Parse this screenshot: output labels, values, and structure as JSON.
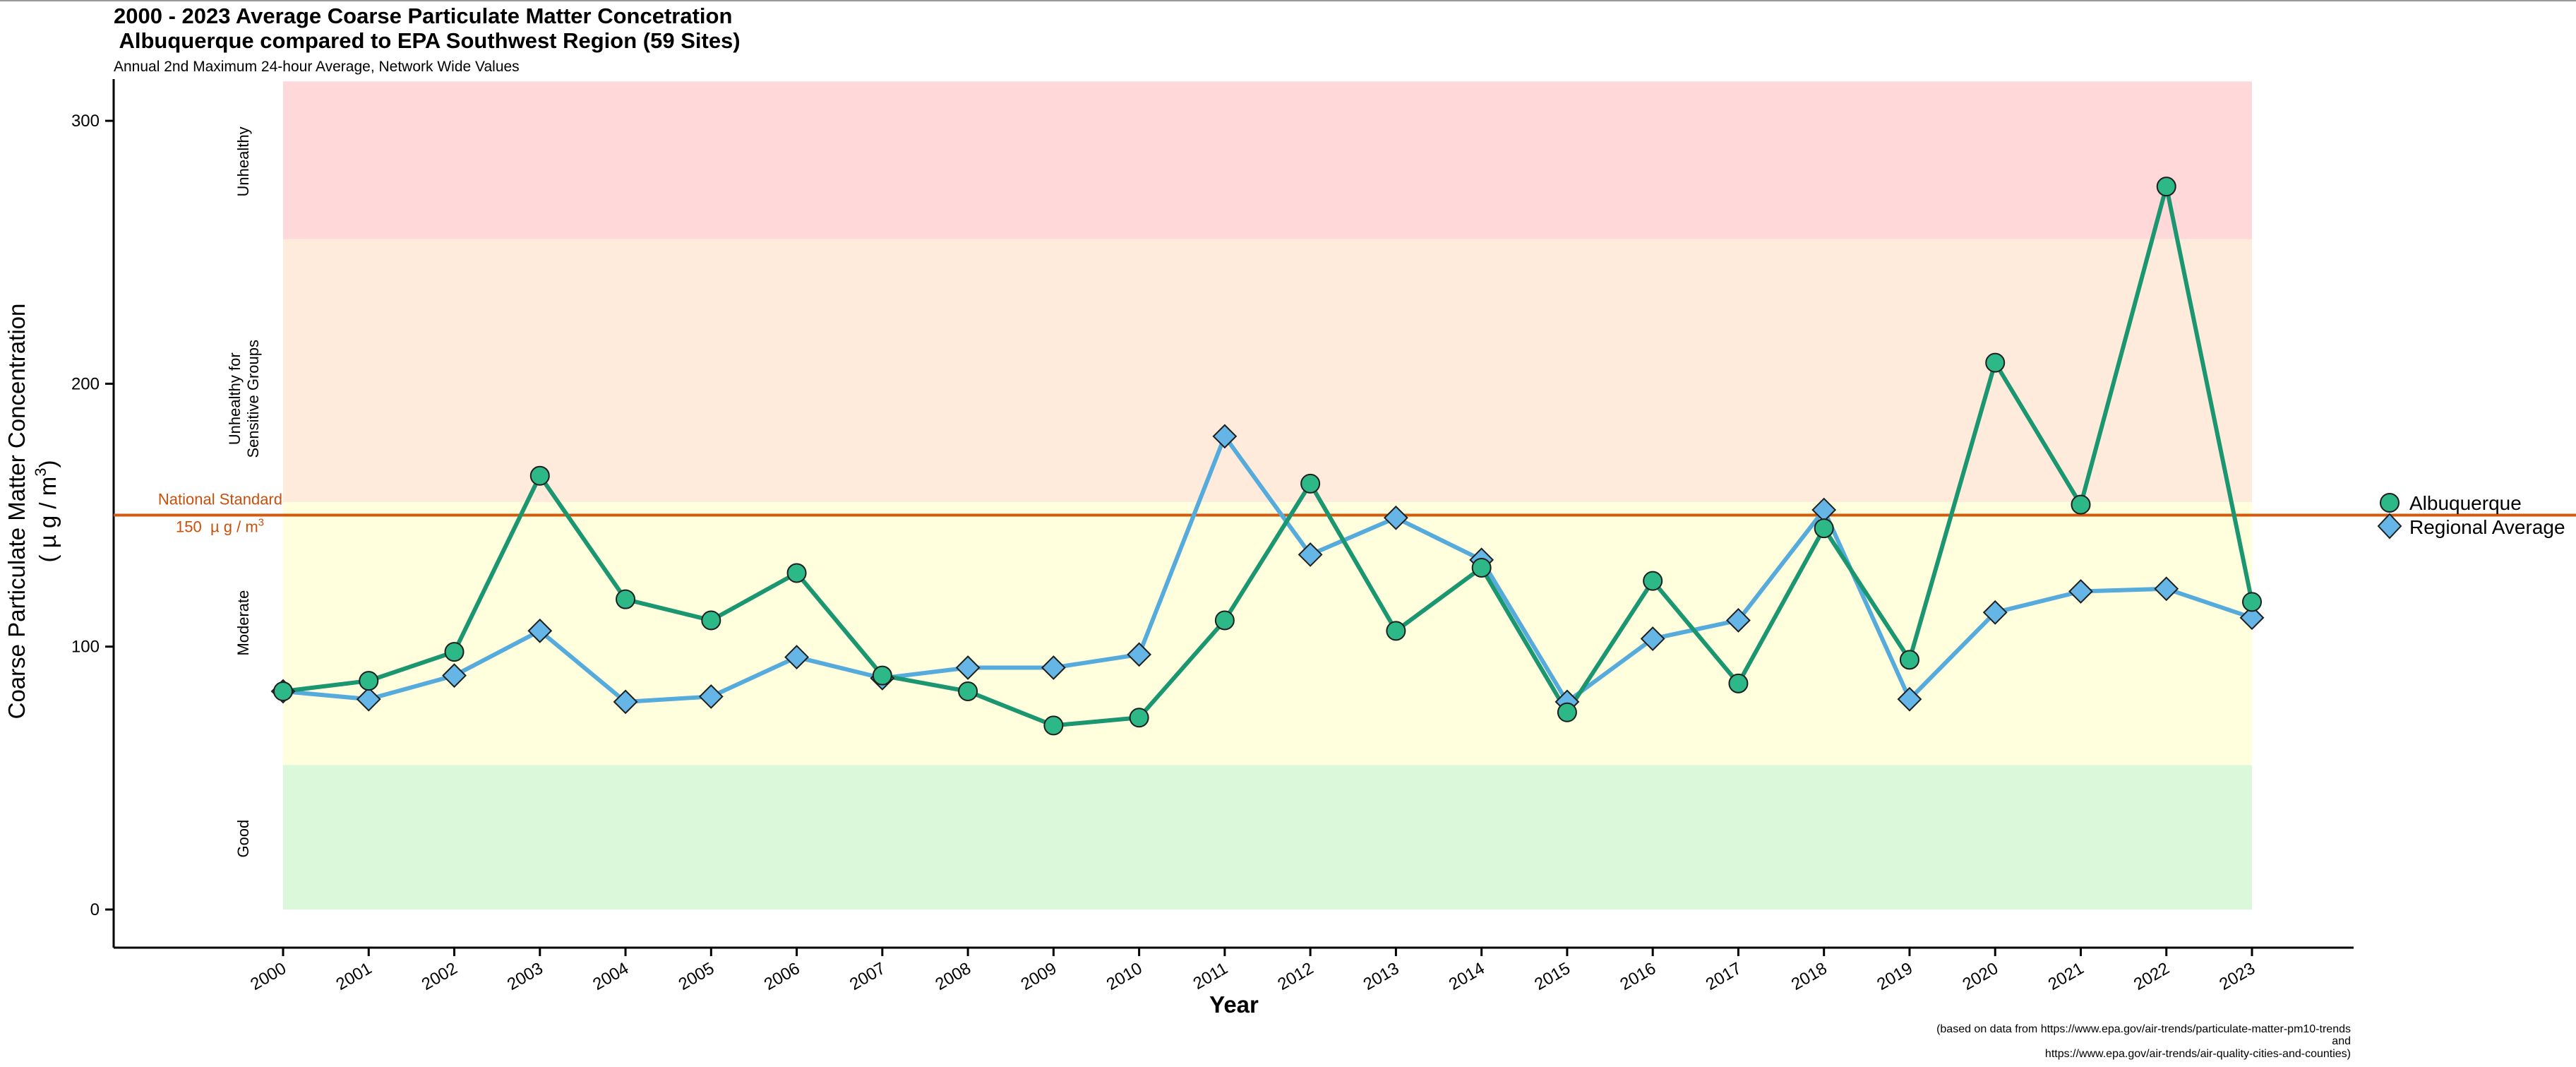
{
  "chart_data": {
    "type": "line",
    "title_line1": "2000 - 2023 Average Coarse Particulate Matter Concetration",
    "title_line2": " Albuquerque compared to EPA Southwest Region (59 Sites)",
    "subtitle": "Annual 2nd Maximum 24-hour Average, Network Wide Values",
    "xlabel": "Year",
    "ylabel_line1": "Coarse Particulate Matter Concentration",
    "ylabel_line2": "( µ g / m",
    "ylabel_sup": "3",
    "ylabel_close": ")",
    "ylim": [
      -15,
      315
    ],
    "yticks": [
      0,
      100,
      200,
      300
    ],
    "x": [
      "2000",
      "2001",
      "2002",
      "2003",
      "2004",
      "2005",
      "2006",
      "2007",
      "2008",
      "2009",
      "2010",
      "2011",
      "2012",
      "2013",
      "2014",
      "2015",
      "2016",
      "2017",
      "2018",
      "2019",
      "2020",
      "2021",
      "2022",
      "2023"
    ],
    "series": [
      {
        "name": "Albuquerque",
        "marker": "circle",
        "color": "#1a9670",
        "fill": "#2db888",
        "values": [
          83,
          87,
          98,
          165,
          118,
          110,
          128,
          89,
          83,
          70,
          73,
          110,
          162,
          106,
          130,
          75,
          125,
          86,
          145,
          95,
          208,
          154,
          275,
          117
        ]
      },
      {
        "name": "Regional Average",
        "marker": "diamond",
        "color": "#55acdc",
        "fill": "#65b5e6",
        "values": [
          83,
          80,
          89,
          106,
          79,
          81,
          96,
          88,
          92,
          92,
          97,
          180,
          135,
          149,
          133,
          79,
          103,
          110,
          152,
          80,
          113,
          121,
          122,
          111
        ]
      }
    ],
    "aqi_bands": [
      {
        "label": "Good",
        "from": 0,
        "to": 55,
        "color": "#dbf9da"
      },
      {
        "label": "Moderate",
        "from": 55,
        "to": 155,
        "color": "#fffedd"
      },
      {
        "label_line1": "Unhealthy for",
        "label_line2": "Sensitive Groups",
        "from": 155,
        "to": 255,
        "color": "#feebdc"
      },
      {
        "label": "Unhealthy",
        "from": 255,
        "to": 315,
        "color": "#ffd9da"
      }
    ],
    "standard": {
      "value": 150,
      "label_line1": "National Standard",
      "label_line2": "150  µ g / m",
      "label_sup": "3",
      "color": "#d35a0c"
    },
    "legend_position": "right",
    "source_note_line1": "(based on data from https://www.epa.gov/air-trends/particulate-matter-pm10-trends",
    "source_note_line2": "and",
    "source_note_line3": "https://www.epa.gov/air-trends/air-quality-cities-and-counties)"
  }
}
